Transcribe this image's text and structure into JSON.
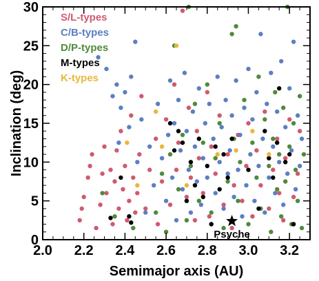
{
  "chart_data": {
    "type": "scatter",
    "title": "",
    "xlabel": "Semimajor axis (AU)",
    "ylabel": "Inclination (deg)",
    "xlim": [
      2.0,
      3.3
    ],
    "ylim": [
      0,
      30
    ],
    "xticks": [
      2.0,
      2.2,
      2.4,
      2.6,
      2.8,
      3.0,
      3.2
    ],
    "xtick_labels": [
      "2.0",
      "2.2",
      "2.4",
      "2.6",
      "2.8",
      "3.0",
      "3.2"
    ],
    "yticks": [
      0,
      5,
      10,
      15,
      20,
      25,
      30
    ],
    "ytick_labels": [
      "0",
      "5",
      "10",
      "15",
      "20",
      "25",
      "30"
    ],
    "grid": false,
    "legend_position": "top-left",
    "series": [
      {
        "name": "S/L-types",
        "color": "#d05a6e",
        "points": [
          [
            2.18,
            2.5
          ],
          [
            2.19,
            4.0
          ],
          [
            2.2,
            5.5
          ],
          [
            2.22,
            8.0
          ],
          [
            2.23,
            9.5
          ],
          [
            2.24,
            11.0
          ],
          [
            2.26,
            1.5
          ],
          [
            2.28,
            4.5
          ],
          [
            2.29,
            8.5
          ],
          [
            2.3,
            12.0
          ],
          [
            2.31,
            6.0
          ],
          [
            2.33,
            9.0
          ],
          [
            2.34,
            2.0
          ],
          [
            2.35,
            7.5
          ],
          [
            2.36,
            11.5
          ],
          [
            2.37,
            4.0
          ],
          [
            2.38,
            14.0
          ],
          [
            2.39,
            6.5
          ],
          [
            2.4,
            9.5
          ],
          [
            2.41,
            2.5
          ],
          [
            2.42,
            5.0
          ],
          [
            2.43,
            16.0
          ],
          [
            2.44,
            8.0
          ],
          [
            2.45,
            3.5
          ],
          [
            2.46,
            6.0
          ],
          [
            2.47,
            11.0
          ],
          [
            2.48,
            18.5
          ],
          [
            2.5,
            4.0
          ],
          [
            2.52,
            9.0
          ],
          [
            2.55,
            13.0
          ],
          [
            2.56,
            2.0
          ],
          [
            2.58,
            7.5
          ],
          [
            2.6,
            15.5
          ],
          [
            2.62,
            4.5
          ],
          [
            2.64,
            20.0
          ],
          [
            2.65,
            9.0
          ],
          [
            2.66,
            12.5
          ],
          [
            2.68,
            29.5
          ],
          [
            2.7,
            5.5
          ],
          [
            2.71,
            17.0
          ],
          [
            2.72,
            8.0
          ],
          [
            2.74,
            2.5
          ],
          [
            2.75,
            14.0
          ],
          [
            2.76,
            10.5
          ],
          [
            2.78,
            6.0
          ],
          [
            2.8,
            19.0
          ],
          [
            2.81,
            3.0
          ],
          [
            2.82,
            12.0
          ],
          [
            2.84,
            8.5
          ],
          [
            2.86,
            16.0
          ],
          [
            2.88,
            4.5
          ],
          [
            2.9,
            11.0
          ],
          [
            2.92,
            1.5
          ],
          [
            2.93,
            7.0
          ],
          [
            2.95,
            13.5
          ],
          [
            2.97,
            5.0
          ],
          [
            2.99,
            9.5
          ],
          [
            3.0,
            15.0
          ],
          [
            3.02,
            3.0
          ],
          [
            3.04,
            11.5
          ],
          [
            3.06,
            7.0
          ],
          [
            3.08,
            16.5
          ],
          [
            3.1,
            4.0
          ],
          [
            3.12,
            9.0
          ],
          [
            3.14,
            13.0
          ],
          [
            3.15,
            6.0
          ],
          [
            3.17,
            2.5
          ],
          [
            3.18,
            10.5
          ],
          [
            3.2,
            15.5
          ],
          [
            3.22,
            5.5
          ],
          [
            3.24,
            8.5
          ],
          [
            3.25,
            14.0
          ]
        ]
      },
      {
        "name": "C/B-types",
        "color": "#5b7fc2",
        "points": [
          [
            2.27,
            23.5
          ],
          [
            2.31,
            22.0
          ],
          [
            2.34,
            18.5
          ],
          [
            2.36,
            20.0
          ],
          [
            2.37,
            12.5
          ],
          [
            2.38,
            17.0
          ],
          [
            2.4,
            19.0
          ],
          [
            2.42,
            14.5
          ],
          [
            2.43,
            21.0
          ],
          [
            2.45,
            25.5
          ],
          [
            2.46,
            10.0
          ],
          [
            2.48,
            15.5
          ],
          [
            2.5,
            3.5
          ],
          [
            2.52,
            12.0
          ],
          [
            2.54,
            7.0
          ],
          [
            2.56,
            17.5
          ],
          [
            2.58,
            10.5
          ],
          [
            2.6,
            5.0
          ],
          [
            2.61,
            13.5
          ],
          [
            2.62,
            20.5
          ],
          [
            2.63,
            8.0
          ],
          [
            2.64,
            15.0
          ],
          [
            2.65,
            2.5
          ],
          [
            2.66,
            18.0
          ],
          [
            2.67,
            11.5
          ],
          [
            2.68,
            6.5
          ],
          [
            2.69,
            21.5
          ],
          [
            2.7,
            14.0
          ],
          [
            2.71,
            9.0
          ],
          [
            2.72,
            3.5
          ],
          [
            2.73,
            16.5
          ],
          [
            2.74,
            12.0
          ],
          [
            2.75,
            7.5
          ],
          [
            2.76,
            19.5
          ],
          [
            2.77,
            4.5
          ],
          [
            2.78,
            10.5
          ],
          [
            2.79,
            15.0
          ],
          [
            2.8,
            8.0
          ],
          [
            2.81,
            17.5
          ],
          [
            2.82,
            2.0
          ],
          [
            2.83,
            13.0
          ],
          [
            2.84,
            6.0
          ],
          [
            2.85,
            21.0
          ],
          [
            2.86,
            10.0
          ],
          [
            2.87,
            14.5
          ],
          [
            2.88,
            4.0
          ],
          [
            2.89,
            18.0
          ],
          [
            2.9,
            8.5
          ],
          [
            2.91,
            11.5
          ],
          [
            2.92,
            16.0
          ],
          [
            2.93,
            5.5
          ],
          [
            2.94,
            20.5
          ],
          [
            2.95,
            9.0
          ],
          [
            2.96,
            13.5
          ],
          [
            2.97,
            3.0
          ],
          [
            2.98,
            17.0
          ],
          [
            2.99,
            7.0
          ],
          [
            3.0,
            22.0
          ],
          [
            3.01,
            11.0
          ],
          [
            3.02,
            15.5
          ],
          [
            3.03,
            5.0
          ],
          [
            3.04,
            19.0
          ],
          [
            3.05,
            9.5
          ],
          [
            3.06,
            26.5
          ],
          [
            3.07,
            13.0
          ],
          [
            3.08,
            3.5
          ],
          [
            3.09,
            17.5
          ],
          [
            3.1,
            8.0
          ],
          [
            3.11,
            21.5
          ],
          [
            3.12,
            12.0
          ],
          [
            3.13,
            6.0
          ],
          [
            3.14,
            16.5
          ],
          [
            3.15,
            10.0
          ],
          [
            3.16,
            23.0
          ],
          [
            3.17,
            4.5
          ],
          [
            3.18,
            14.5
          ],
          [
            3.19,
            8.5
          ],
          [
            3.2,
            19.5
          ],
          [
            3.21,
            11.5
          ],
          [
            3.22,
            25.5
          ],
          [
            3.23,
            6.5
          ],
          [
            3.24,
            16.0
          ],
          [
            3.25,
            9.5
          ],
          [
            3.26,
            13.0
          ]
        ]
      },
      {
        "name": "D/P-types",
        "color": "#4f8a3c",
        "points": [
          [
            2.29,
            6.0
          ],
          [
            2.35,
            3.0
          ],
          [
            2.44,
            1.5
          ],
          [
            2.55,
            3.5
          ],
          [
            2.58,
            8.5
          ],
          [
            2.6,
            1.0
          ],
          [
            2.62,
            11.0
          ],
          [
            2.64,
            25.0
          ],
          [
            2.66,
            6.5
          ],
          [
            2.68,
            13.5
          ],
          [
            2.7,
            2.5
          ],
          [
            2.71,
            30.0
          ],
          [
            2.72,
            9.5
          ],
          [
            2.74,
            17.5
          ],
          [
            2.76,
            5.0
          ],
          [
            2.78,
            12.5
          ],
          [
            2.8,
            20.0
          ],
          [
            2.82,
            3.5
          ],
          [
            2.84,
            10.5
          ],
          [
            2.86,
            15.0
          ],
          [
            2.88,
            1.5
          ],
          [
            2.9,
            7.5
          ],
          [
            2.92,
            26.5
          ],
          [
            2.93,
            13.0
          ],
          [
            2.94,
            27.5
          ],
          [
            2.95,
            5.0
          ],
          [
            2.96,
            10.0
          ],
          [
            2.98,
            18.0
          ],
          [
            3.0,
            2.0
          ],
          [
            3.02,
            12.5
          ],
          [
            3.04,
            8.0
          ],
          [
            3.05,
            21.0
          ],
          [
            3.06,
            4.0
          ],
          [
            3.08,
            15.5
          ],
          [
            3.1,
            9.5
          ],
          [
            3.11,
            1.0
          ],
          [
            3.12,
            13.0
          ],
          [
            3.13,
            19.0
          ],
          [
            3.14,
            6.5
          ],
          [
            3.15,
            11.0
          ],
          [
            3.16,
            3.0
          ],
          [
            3.17,
            17.0
          ],
          [
            3.18,
            7.5
          ],
          [
            3.19,
            30.0
          ],
          [
            3.2,
            12.0
          ],
          [
            3.21,
            2.0
          ],
          [
            3.22,
            15.0
          ],
          [
            3.23,
            9.0
          ],
          [
            3.24,
            5.0
          ],
          [
            3.25,
            18.5
          ],
          [
            3.26,
            1.5
          ],
          [
            3.27,
            11.0
          ]
        ]
      },
      {
        "name": "M-types",
        "color": "#000000",
        "points": [
          [
            2.33,
            2.8
          ],
          [
            2.38,
            8.0
          ],
          [
            2.42,
            3.0
          ],
          [
            2.43,
            2.2
          ],
          [
            2.62,
            15.0
          ],
          [
            2.64,
            11.5
          ],
          [
            2.66,
            14.0
          ],
          [
            2.68,
            12.5
          ],
          [
            2.7,
            5.0
          ],
          [
            2.72,
            10.0
          ],
          [
            2.74,
            7.0
          ],
          [
            2.76,
            13.0
          ],
          [
            2.78,
            5.5
          ],
          [
            2.8,
            9.5
          ],
          [
            2.82,
            2.0
          ],
          [
            2.84,
            12.0
          ],
          [
            2.86,
            6.5
          ],
          [
            2.88,
            11.0
          ],
          [
            2.9,
            8.0
          ],
          [
            2.92,
            13.0
          ],
          [
            3.0,
            9.0
          ],
          [
            3.05,
            4.0
          ],
          [
            3.08,
            14.0
          ],
          [
            3.1,
            10.5
          ],
          [
            3.12,
            8.0
          ],
          [
            3.14,
            12.5
          ],
          [
            3.15,
            19.5
          ],
          [
            3.18,
            10.0
          ],
          [
            3.2,
            11.0
          ],
          [
            3.22,
            2.0
          ]
        ]
      },
      {
        "name": "K-types",
        "color": "#e8b83a",
        "points": [
          [
            2.41,
            12.5
          ],
          [
            2.46,
            7.0
          ],
          [
            2.55,
            16.5
          ],
          [
            2.58,
            12.0
          ],
          [
            2.65,
            25.0
          ],
          [
            2.7,
            7.0
          ],
          [
            2.85,
            11.0
          ],
          [
            2.94,
            11.5
          ],
          [
            3.02,
            14.0
          ],
          [
            3.1,
            11.0
          ]
        ]
      }
    ],
    "annotations": [
      {
        "label": "Psyche",
        "x": 2.92,
        "y": 2.4,
        "marker": "star",
        "color": "#000000"
      }
    ]
  }
}
